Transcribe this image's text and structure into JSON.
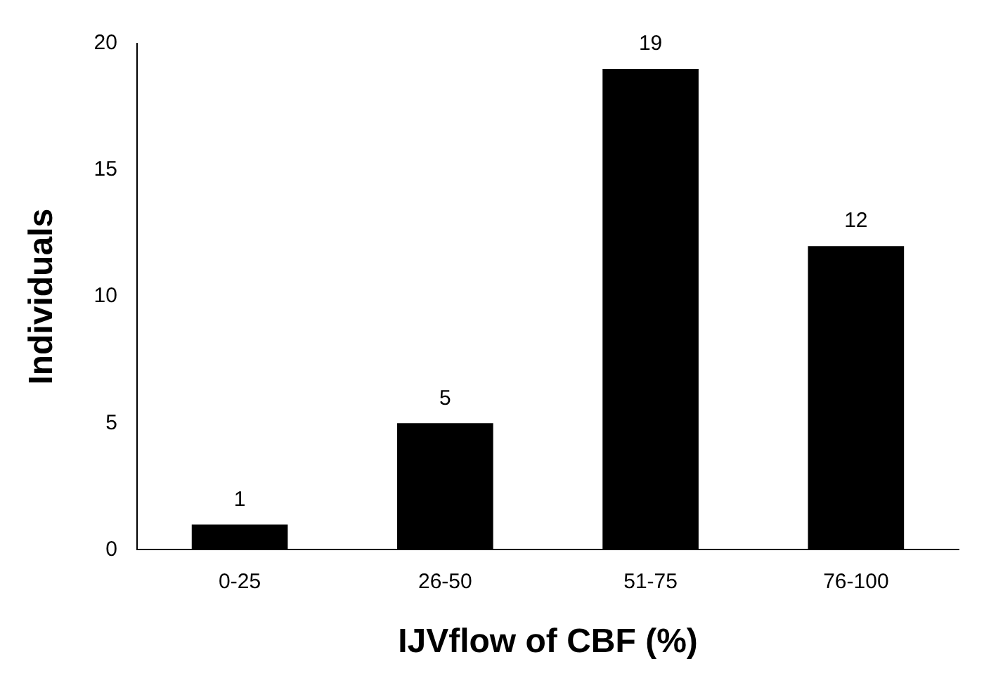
{
  "chart_data": {
    "type": "bar",
    "xlabel": "IJVflow of CBF (%)",
    "ylabel": "Individuals",
    "categories": [
      "0-25",
      "26-50",
      "51-75",
      "76-100"
    ],
    "values": [
      1,
      5,
      19,
      12
    ],
    "color": "#000000",
    "ylim": [
      0,
      20
    ],
    "yticks": [
      0,
      5,
      10,
      15,
      20
    ],
    "grid": false,
    "legend": false,
    "data_labels": true
  }
}
